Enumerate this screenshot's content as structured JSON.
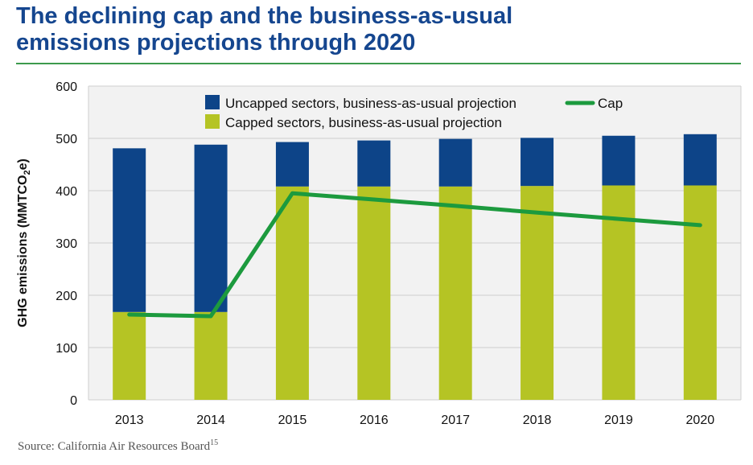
{
  "header": {
    "title_line1": "The declining cap and the business-as-usual",
    "title_line2": "emissions projections through 2020"
  },
  "footer": {
    "source": "Source: California Air Resources Board",
    "source_note": "15"
  },
  "axis": {
    "ylabel_prefix": "GHG emissions (MMTCO",
    "ylabel_sub": "2",
    "ylabel_suffix": "e)"
  },
  "colors": {
    "uncapped": "#0d4488",
    "capped": "#b5c424",
    "cap": "#1c9a3e",
    "plot_bg": "#f2f2f2",
    "grid": "#cfcfcf",
    "title": "#15468f",
    "rule": "#3d9a4d"
  },
  "chart_data": {
    "type": "bar",
    "stacked": true,
    "title": "The declining cap and the business-as-usual emissions projections through 2020",
    "xlabel": "",
    "ylabel": "GHG emissions (MMTCO2e)",
    "ylim": [
      0,
      600
    ],
    "yticks": [
      0,
      100,
      200,
      300,
      400,
      500,
      600
    ],
    "grid": true,
    "categories": [
      "2013",
      "2014",
      "2015",
      "2016",
      "2017",
      "2018",
      "2019",
      "2020"
    ],
    "series": [
      {
        "name": "Capped sectors, business-as-usual projection",
        "kind": "bar",
        "color_key": "capped",
        "values": [
          168,
          168,
          408,
          408,
          408,
          409,
          410,
          410
        ]
      },
      {
        "name": "Uncapped sectors, business-as-usual projection",
        "kind": "bar",
        "color_key": "uncapped",
        "values": [
          313,
          320,
          85,
          88,
          91,
          92,
          95,
          98
        ]
      },
      {
        "name": "Cap",
        "kind": "line",
        "color_key": "cap",
        "values": [
          163,
          160,
          395,
          383,
          371,
          358,
          346,
          334
        ]
      }
    ],
    "legend": {
      "placement": "top",
      "entries": [
        {
          "label": "Uncapped sectors, business-as-usual projection",
          "color_key": "uncapped",
          "kind": "bar"
        },
        {
          "label": "Cap",
          "color_key": "cap",
          "kind": "line"
        },
        {
          "label": "Capped sectors, business-as-usual projection",
          "color_key": "capped",
          "kind": "bar"
        }
      ]
    }
  }
}
